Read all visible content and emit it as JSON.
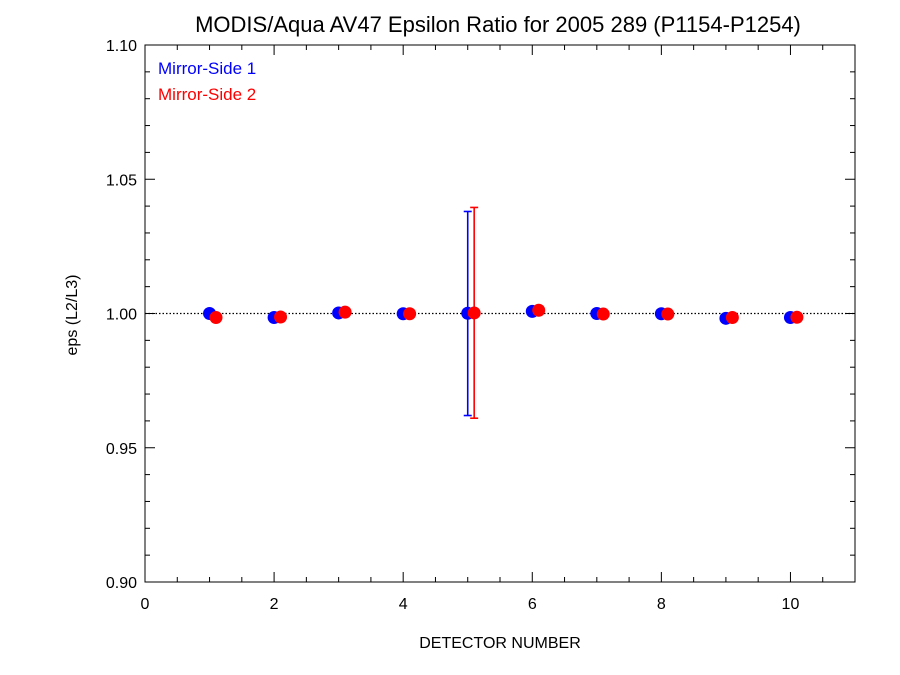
{
  "chart_data": {
    "type": "scatter",
    "title": "MODIS/Aqua AV47 Epsilon Ratio for 2005 289 (P1154-P1254)",
    "xlabel": "DETECTOR NUMBER",
    "ylabel": "eps (L2/L3)",
    "xlim": [
      0,
      11
    ],
    "ylim": [
      0.9,
      1.1
    ],
    "x_ticks": [
      0,
      2,
      4,
      6,
      8,
      10
    ],
    "x_tick_labels": [
      "0",
      "2",
      "4",
      "6",
      "8",
      "10"
    ],
    "y_ticks": [
      0.9,
      0.95,
      1.0,
      1.05,
      1.1
    ],
    "y_tick_labels": [
      "0.90",
      "0.95",
      "1.00",
      "1.05",
      "1.10"
    ],
    "reference_line": 1.0,
    "legend_position": "top-left",
    "series": [
      {
        "name": "Mirror-Side 1",
        "color": "#0000ff",
        "x": [
          1,
          2,
          3,
          4,
          5,
          6,
          7,
          8,
          9,
          10
        ],
        "y": [
          1.0,
          0.9985,
          1.0002,
          0.9999,
          1.0001,
          1.0008,
          1.0,
          0.9999,
          0.9982,
          0.9985
        ],
        "error_bars": [
          {
            "x": 5,
            "low": 0.962,
            "high": 1.038
          }
        ]
      },
      {
        "name": "Mirror-Side 2",
        "color": "#ff0000",
        "x": [
          1.1,
          2.1,
          3.1,
          4.1,
          5.1,
          6.1,
          7.1,
          8.1,
          9.1,
          10.1
        ],
        "y": [
          0.9985,
          0.9987,
          1.0005,
          0.9999,
          1.0002,
          1.0012,
          0.9998,
          0.9998,
          0.9985,
          0.9986
        ],
        "error_bars": [
          {
            "x": 5.1,
            "low": 0.961,
            "high": 1.0395
          }
        ]
      }
    ]
  }
}
